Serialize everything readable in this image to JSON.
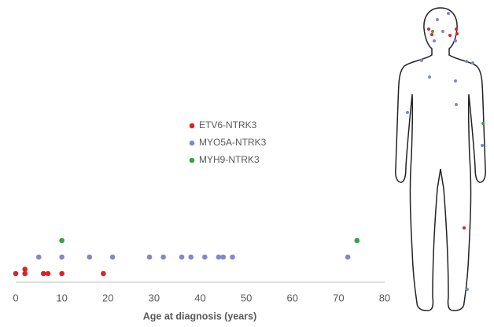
{
  "chart_data": {
    "type": "scatter",
    "x_label": "Age at diagnosis (years)",
    "xlim": [
      0,
      80
    ],
    "xticks": [
      0,
      10,
      20,
      30,
      40,
      50,
      60,
      70,
      80
    ],
    "series": [
      {
        "name": "ETV6-NTRK3",
        "color": "#e0202a",
        "x": [
          0,
          2,
          2,
          6,
          7,
          10,
          19
        ]
      },
      {
        "name": "MYO5A-NTRK3",
        "color": "#8088c8",
        "x": [
          5,
          10,
          16,
          21,
          29,
          32,
          36,
          38,
          41,
          44,
          45,
          47,
          72
        ]
      },
      {
        "name": "MYH9-NTRK3",
        "color": "#3aa048",
        "x": [
          10,
          74
        ]
      }
    ]
  }
}
